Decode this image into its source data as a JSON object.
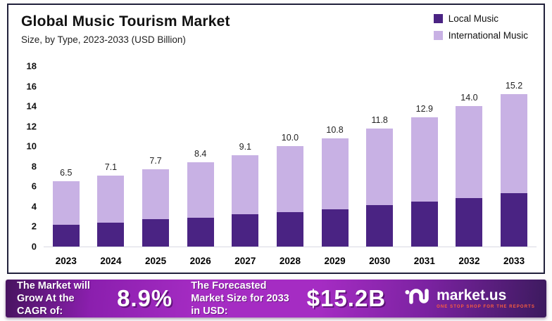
{
  "header": {
    "title": "Global Music Tourism Market",
    "subtitle": "Size, by Type, 2023-2033 (USD Billion)"
  },
  "legend": [
    {
      "label": "Local Music",
      "color": "#4a2383"
    },
    {
      "label": "International Music",
      "color": "#c8b1e4"
    }
  ],
  "chart_data": {
    "type": "bar",
    "stacked": true,
    "title": "Global Music Tourism Market",
    "subtitle": "Size, by Type, 2023-2033 (USD Billion)",
    "ylabel": "USD Billion",
    "ylim": [
      0,
      18
    ],
    "ytick_step": 2,
    "grid": false,
    "legend_position": "top-right",
    "categories": [
      "2023",
      "2024",
      "2025",
      "2026",
      "2027",
      "2028",
      "2029",
      "2030",
      "2031",
      "2032",
      "2033"
    ],
    "series": [
      {
        "name": "Local Music",
        "color": "#4a2383",
        "values": [
          2.2,
          2.4,
          2.7,
          2.9,
          3.2,
          3.4,
          3.7,
          4.1,
          4.5,
          4.8,
          5.3
        ]
      },
      {
        "name": "International Music",
        "color": "#c8b1e4",
        "values": [
          4.3,
          4.7,
          5.0,
          5.5,
          5.9,
          6.6,
          7.1,
          7.7,
          8.4,
          9.2,
          9.9
        ]
      }
    ],
    "total_labels": [
      "6.5",
      "7.1",
      "7.7",
      "8.4",
      "9.1",
      "10.0",
      "10.8",
      "11.8",
      "12.9",
      "14.0",
      "15.2"
    ]
  },
  "banner": {
    "cagr_label": "The Market will Grow At the CAGR of:",
    "cagr_value": "8.9%",
    "forecast_label": "The Forecasted Market Size for 2033 in USD:",
    "forecast_value": "$15.2B",
    "brand_name": "market.us",
    "brand_tagline": "ONE STOP SHOP FOR THE REPORTS"
  }
}
